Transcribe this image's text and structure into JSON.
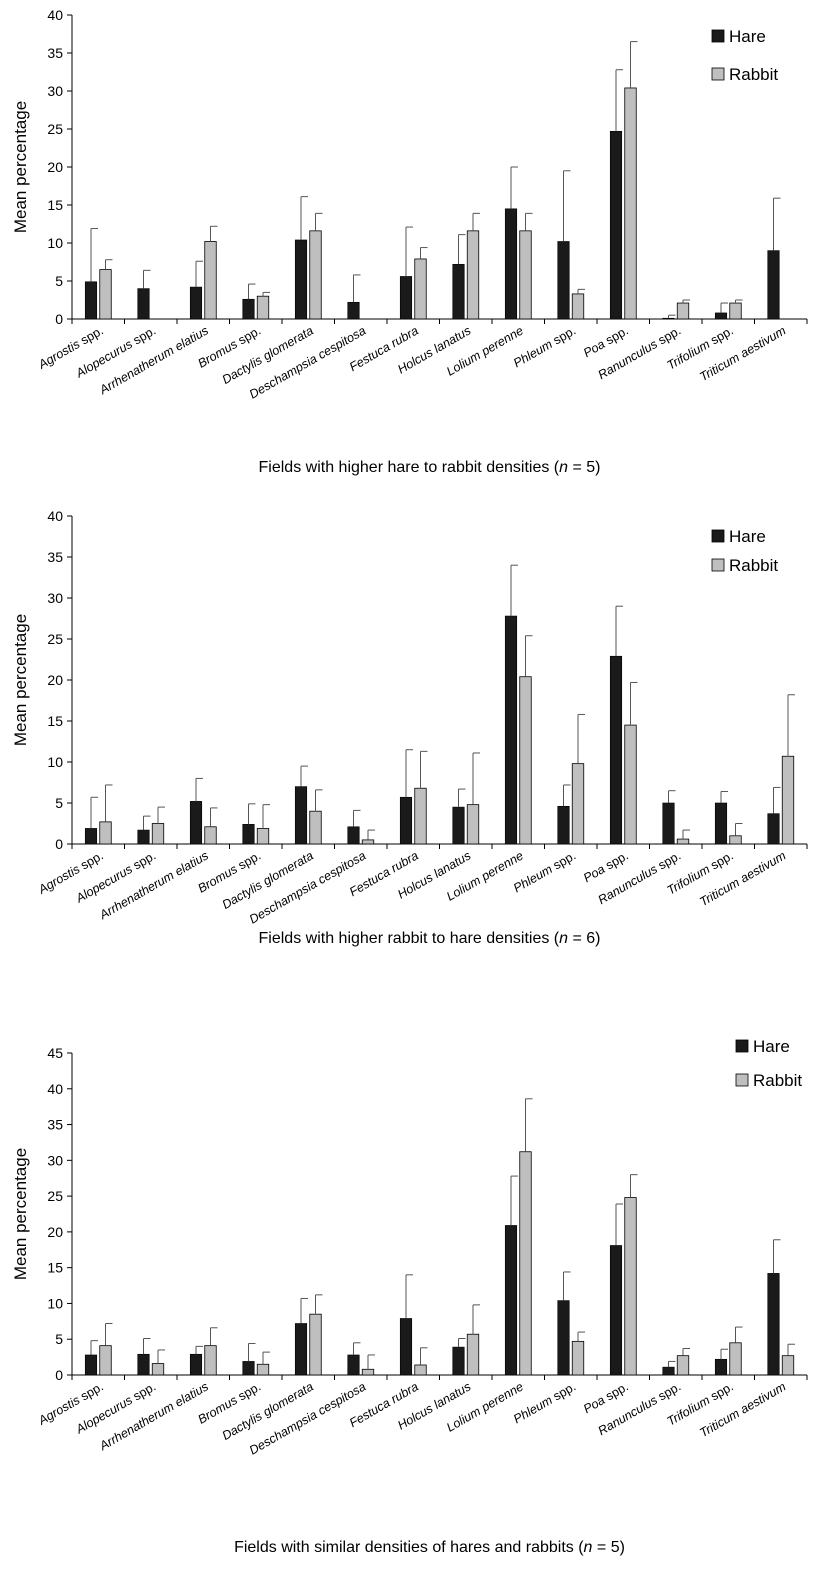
{
  "chart_data": [
    {
      "type": "bar",
      "caption_text": "Fields with higher hare to rabbit densities (",
      "caption_n": "n",
      "caption_tail": " = 5)",
      "ylabel": "Mean percentage",
      "ylim": [
        0,
        40
      ],
      "yticks": [
        "0",
        "5",
        "10",
        "15",
        "20",
        "25",
        "30",
        "35",
        "40"
      ],
      "legend_position": "top-right",
      "categories": [
        {
          "italic": "Agrostis",
          "plain": " spp."
        },
        {
          "italic": "Alopecurus",
          "plain": " spp."
        },
        {
          "italic": "Arrhenatherum elatius",
          "plain": ""
        },
        {
          "italic": "Bromus",
          "plain": " spp."
        },
        {
          "italic": "Dactylis glomerata",
          "plain": ""
        },
        {
          "italic": "Deschampsia cespitosa",
          "plain": ""
        },
        {
          "italic": "Festuca rubra",
          "plain": ""
        },
        {
          "italic": "Holcus lanatus",
          "plain": ""
        },
        {
          "italic": "Lolium perenne",
          "plain": ""
        },
        {
          "italic": "Phleum",
          "plain": " spp."
        },
        {
          "italic": "Poa",
          "plain": " spp."
        },
        {
          "italic": "Ranunculus",
          "plain": " spp."
        },
        {
          "italic": "Trifolium",
          "plain": " spp."
        },
        {
          "italic": "Triticum aestivum",
          "plain": ""
        }
      ],
      "series": [
        {
          "name": "Hare",
          "color": "#1a1a1a",
          "values": [
            4.9,
            4.0,
            4.2,
            2.6,
            10.4,
            2.2,
            5.6,
            7.2,
            14.5,
            10.2,
            24.7,
            0.1,
            0.8,
            9.0
          ],
          "errors": [
            7.0,
            2.4,
            3.4,
            2.0,
            5.7,
            3.6,
            6.5,
            3.9,
            5.5,
            9.3,
            8.1,
            0.4,
            1.3,
            6.9
          ]
        },
        {
          "name": "Rabbit",
          "color": "#bfbfbf",
          "values": [
            6.5,
            0.0,
            10.2,
            3.0,
            11.6,
            0.0,
            7.9,
            11.6,
            11.6,
            3.3,
            30.4,
            2.1,
            2.1,
            0.0
          ],
          "errors": [
            1.3,
            0,
            2.0,
            0.5,
            2.3,
            0,
            1.5,
            2.3,
            2.3,
            0.6,
            6.1,
            0.4,
            0.4,
            0
          ]
        }
      ]
    },
    {
      "type": "bar",
      "caption_text": "Fields with higher rabbit  to hare densities  (",
      "caption_n": "n",
      "caption_tail": " = 6)",
      "ylabel": "Mean percentage",
      "ylim": [
        0,
        40
      ],
      "yticks": [
        "0",
        "5",
        "10",
        "15",
        "20",
        "25",
        "30",
        "35",
        "40"
      ],
      "legend_position": "top-right",
      "categories": [
        {
          "italic": "Agrostis",
          "plain": " spp."
        },
        {
          "italic": "Alopecurus",
          "plain": " spp."
        },
        {
          "italic": "Arrhenatherum elatius",
          "plain": ""
        },
        {
          "italic": "Bromus",
          "plain": " spp."
        },
        {
          "italic": "Dactylis glomerata",
          "plain": ""
        },
        {
          "italic": "Deschampsia cespitosa",
          "plain": ""
        },
        {
          "italic": "Festuca rubra",
          "plain": ""
        },
        {
          "italic": "Holcus lanatus",
          "plain": ""
        },
        {
          "italic": "Lolium perenne",
          "plain": ""
        },
        {
          "italic": "Phleum",
          "plain": " spp."
        },
        {
          "italic": "Poa",
          "plain": " spp."
        },
        {
          "italic": "Ranunculus",
          "plain": " spp."
        },
        {
          "italic": "Trifolium",
          "plain": " spp."
        },
        {
          "italic": "Triticum aestivum",
          "plain": ""
        }
      ],
      "series": [
        {
          "name": "Hare",
          "color": "#1a1a1a",
          "values": [
            1.9,
            1.7,
            5.2,
            2.4,
            7.0,
            2.1,
            5.7,
            4.5,
            27.8,
            4.6,
            22.9,
            5.0,
            5.0,
            3.7
          ],
          "errors": [
            3.8,
            1.7,
            2.8,
            2.5,
            2.5,
            2.0,
            5.8,
            2.2,
            6.2,
            2.6,
            6.1,
            1.5,
            1.4,
            3.2
          ]
        },
        {
          "name": "Rabbit",
          "color": "#bfbfbf",
          "values": [
            2.7,
            2.5,
            2.1,
            1.9,
            4.0,
            0.5,
            6.8,
            4.8,
            20.4,
            9.8,
            14.5,
            0.6,
            1.0,
            10.7
          ],
          "errors": [
            4.5,
            2.0,
            2.3,
            2.9,
            2.6,
            1.2,
            4.5,
            6.3,
            5.0,
            6.0,
            5.2,
            1.1,
            1.5,
            7.5
          ]
        }
      ]
    },
    {
      "type": "bar",
      "caption_text": "Fields with similar densities of hares and rabbits (",
      "caption_n": "n",
      "caption_tail": " = 5)",
      "ylabel": "Mean percentage",
      "ylim": [
        0,
        45
      ],
      "yticks": [
        "0",
        "5",
        "10",
        "15",
        "20",
        "25",
        "30",
        "35",
        "40",
        "45"
      ],
      "legend_position": "top-right",
      "categories": [
        {
          "italic": "Agrostis",
          "plain": " spp."
        },
        {
          "italic": "Alopecurus",
          "plain": " spp."
        },
        {
          "italic": "Arrhenatherum elatius",
          "plain": ""
        },
        {
          "italic": "Bromus",
          "plain": " spp."
        },
        {
          "italic": "Dactylis glomerata",
          "plain": ""
        },
        {
          "italic": "Deschampsia cespitosa",
          "plain": ""
        },
        {
          "italic": "Festuca rubra",
          "plain": ""
        },
        {
          "italic": "Holcus lanatus",
          "plain": ""
        },
        {
          "italic": "Lolium perenne",
          "plain": ""
        },
        {
          "italic": "Phleum",
          "plain": " spp."
        },
        {
          "italic": "Poa",
          "plain": " spp."
        },
        {
          "italic": "Ranunculus",
          "plain": " spp."
        },
        {
          "italic": "Trifolium",
          "plain": " spp."
        },
        {
          "italic": "Triticum aestivum",
          "plain": ""
        }
      ],
      "series": [
        {
          "name": "Hare",
          "color": "#1a1a1a",
          "values": [
            2.8,
            2.9,
            2.9,
            1.9,
            7.2,
            2.8,
            7.9,
            3.9,
            20.9,
            10.4,
            18.1,
            1.1,
            2.2,
            14.2
          ],
          "errors": [
            2.0,
            2.2,
            1.1,
            2.5,
            3.5,
            1.7,
            6.1,
            1.2,
            6.9,
            4.0,
            5.8,
            0.8,
            1.4,
            4.7
          ]
        },
        {
          "name": "Rabbit",
          "color": "#bfbfbf",
          "values": [
            4.1,
            1.6,
            4.1,
            1.5,
            8.5,
            0.8,
            1.4,
            5.7,
            31.2,
            4.7,
            24.8,
            2.7,
            4.5,
            2.7
          ],
          "errors": [
            3.1,
            1.9,
            2.5,
            1.7,
            2.7,
            2.0,
            2.4,
            4.1,
            7.4,
            1.3,
            3.2,
            1.0,
            2.2,
            1.6
          ]
        }
      ]
    }
  ]
}
